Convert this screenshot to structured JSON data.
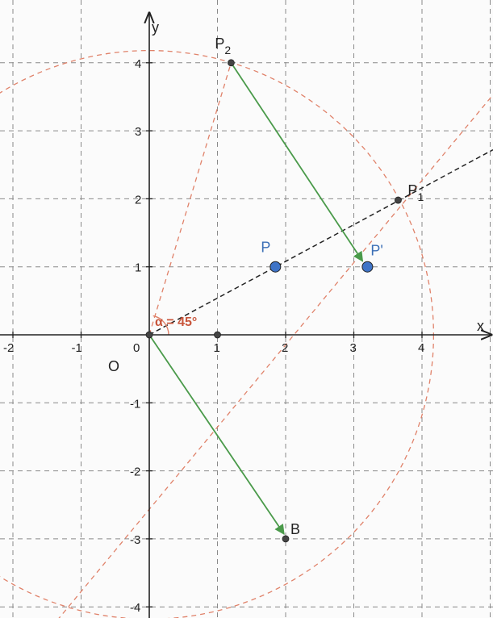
{
  "diagram": {
    "axes": {
      "x_label": "x",
      "y_label": "y",
      "x_range": [
        -2.2,
        5.0
      ],
      "y_range": [
        -4.1,
        4.7
      ],
      "x_ticks": [
        -2,
        -1,
        1,
        2,
        3,
        4
      ],
      "y_ticks": [
        -4,
        -3,
        -2,
        -1,
        1,
        2,
        3,
        4
      ],
      "x_tick_labels": [
        "-2",
        "-1",
        "1",
        "2",
        "3",
        "4"
      ],
      "y_tick_labels": [
        "-4",
        "-3",
        "-2",
        "-1",
        "1",
        "2",
        "3",
        "4"
      ],
      "origin_label": "O",
      "origin_tick": "0"
    },
    "points": [
      {
        "id": "origin",
        "label": "",
        "x": 0,
        "y": 0,
        "style": "small"
      },
      {
        "id": "one",
        "label": "",
        "x": 1,
        "y": 0,
        "style": "small"
      },
      {
        "id": "P",
        "label": "P",
        "x": 1.85,
        "y": 1.0,
        "style": "blue"
      },
      {
        "id": "Pprime",
        "label": "P'",
        "x": 3.2,
        "y": 1.0,
        "style": "blue"
      },
      {
        "id": "P1",
        "label": "P",
        "label_sub": "1",
        "x": 3.65,
        "y": 1.98,
        "style": "small"
      },
      {
        "id": "P2",
        "label": "P",
        "label_sub": "2",
        "x": 1.2,
        "y": 4.0,
        "style": "small"
      },
      {
        "id": "B",
        "label": "B",
        "x": 2.0,
        "y": -3.0,
        "style": "small"
      }
    ],
    "angle": {
      "label": "α = 45°",
      "degrees": 45
    },
    "circle": {
      "center": [
        0,
        0
      ],
      "radius": 4.17
    },
    "colors": {
      "grid": "#8a8a8a",
      "orange": "#e0826a",
      "green": "#4a9a4a",
      "blue_point": "#3f74c7",
      "black": "#222222"
    }
  }
}
